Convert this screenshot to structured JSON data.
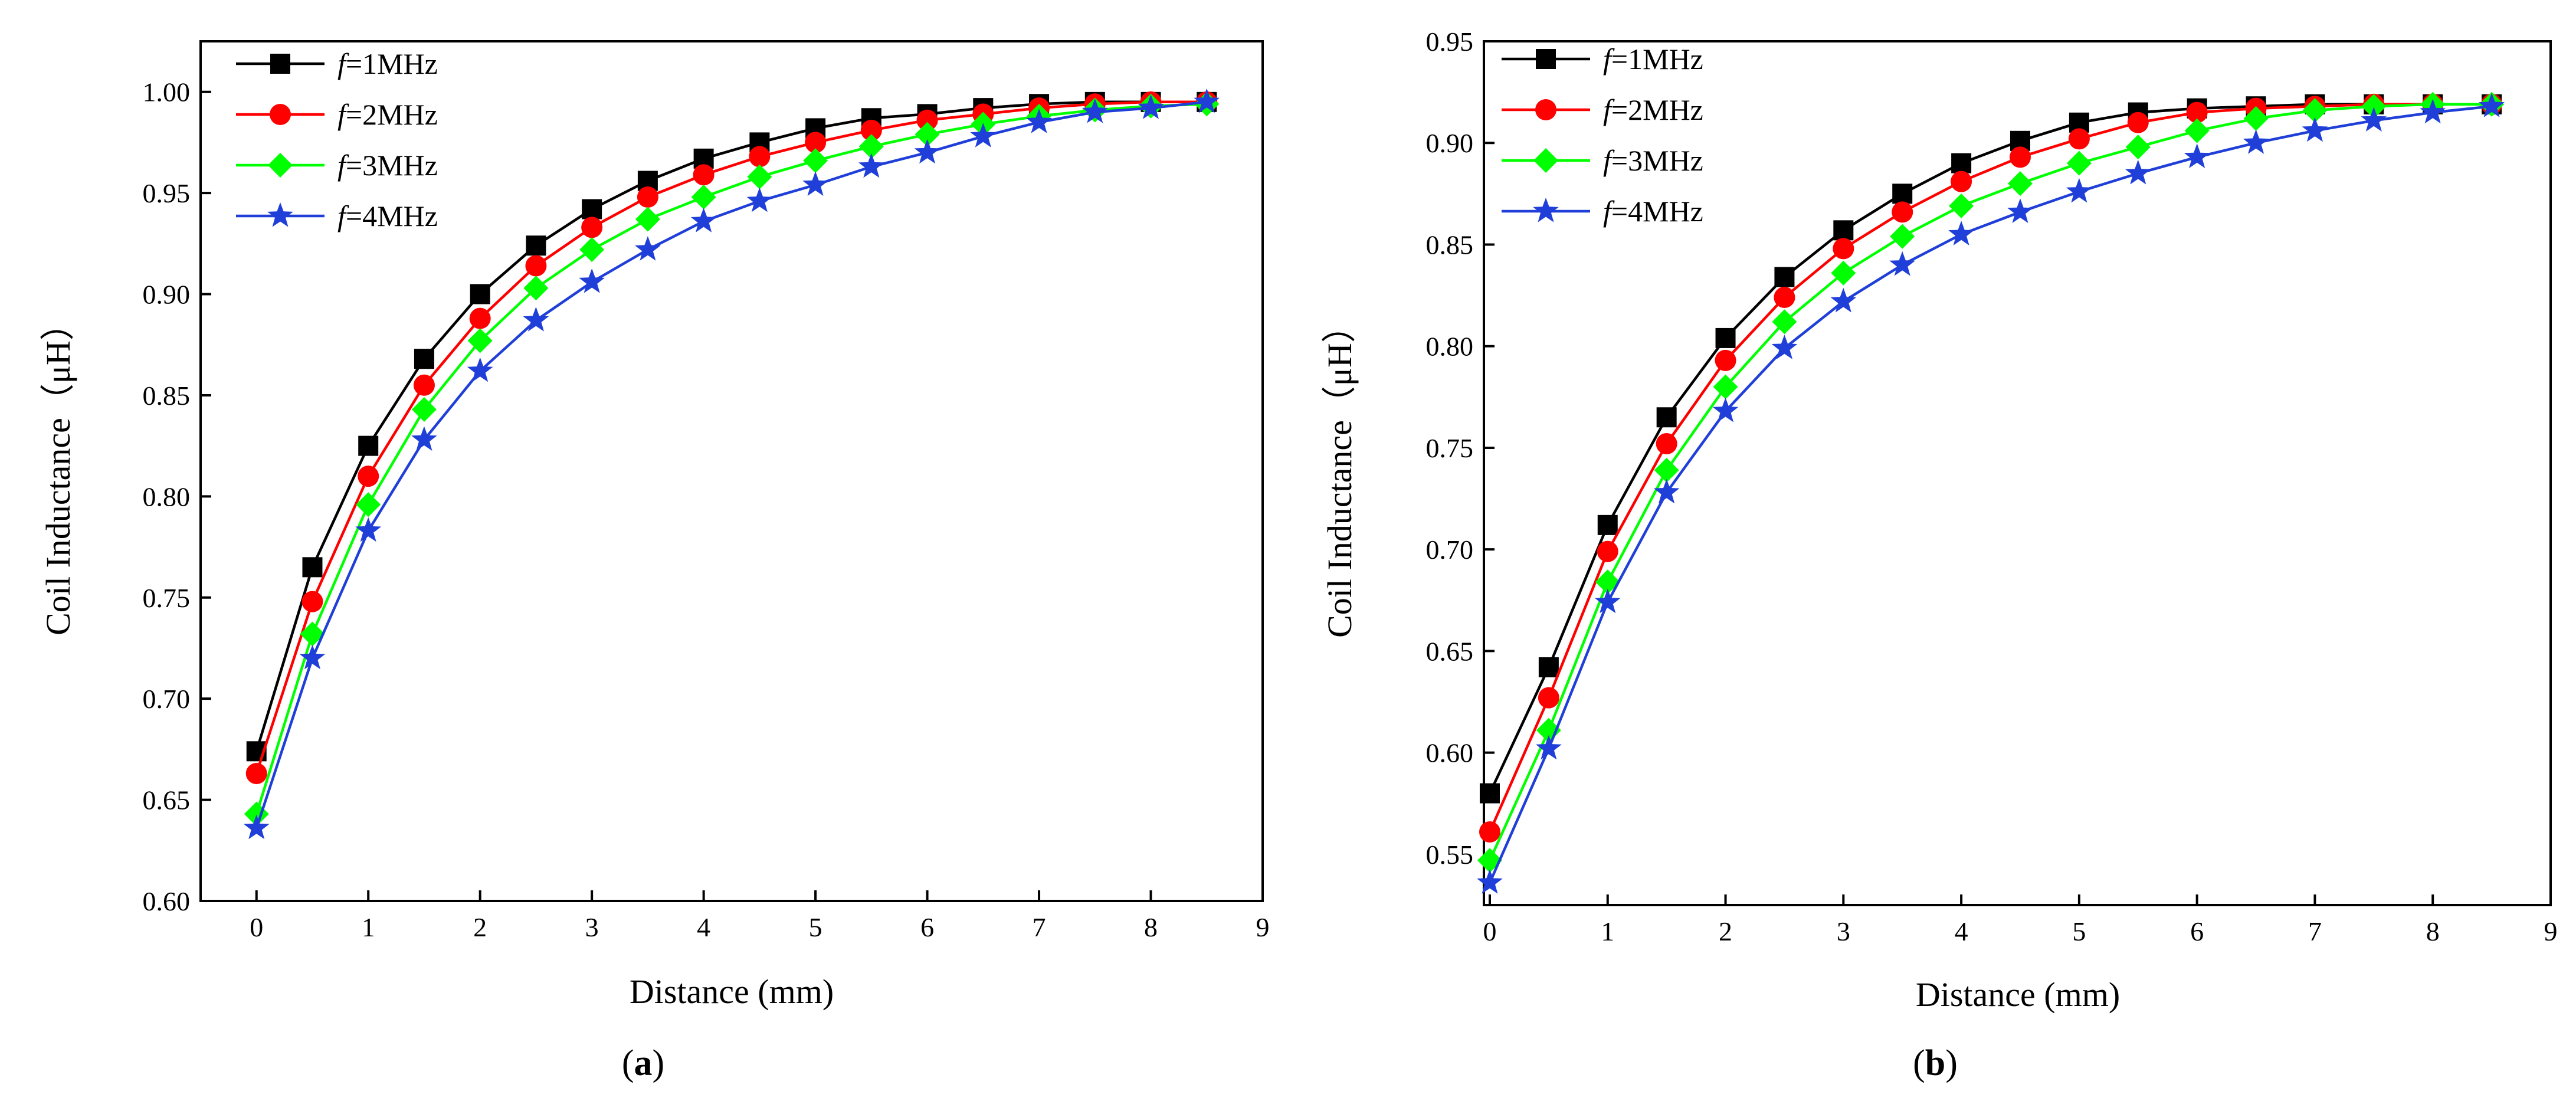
{
  "chart_data": [
    {
      "type": "line",
      "caption": {
        "open": "(",
        "letter": "a",
        "close": ")"
      },
      "xlabel": "Distance (mm)",
      "ylabel": "Coil Inductance（μH）",
      "xlim": [
        -0.5,
        9
      ],
      "ylim": [
        0.6,
        1.025
      ],
      "xticks": [
        0,
        1,
        2,
        3,
        4,
        5,
        6,
        7,
        8,
        9
      ],
      "yticks": [
        "0.60",
        "0.65",
        "0.70",
        "0.75",
        "0.80",
        "0.85",
        "0.90",
        "0.95",
        "1.00"
      ],
      "legend_position": "top-left",
      "x": [
        0,
        0.5,
        1,
        1.5,
        2,
        2.5,
        3,
        3.5,
        4,
        4.5,
        5,
        5.5,
        6,
        6.5,
        7,
        7.5,
        8,
        8.5
      ],
      "series": [
        {
          "name": "f=1MHz",
          "label_italic": "f",
          "label_rest": "=1MHz",
          "color": "#000000",
          "marker": "square",
          "values": [
            0.674,
            0.765,
            0.825,
            0.868,
            0.9,
            0.924,
            0.942,
            0.956,
            0.967,
            0.975,
            0.982,
            0.987,
            0.989,
            0.992,
            0.994,
            0.995,
            0.995,
            0.995
          ]
        },
        {
          "name": "f=2MHz",
          "label_italic": "f",
          "label_rest": "=2MHz",
          "color": "#ff0000",
          "marker": "circle",
          "values": [
            0.663,
            0.748,
            0.81,
            0.855,
            0.888,
            0.914,
            0.933,
            0.948,
            0.959,
            0.968,
            0.975,
            0.981,
            0.986,
            0.989,
            0.992,
            0.994,
            0.995,
            0.995
          ]
        },
        {
          "name": "f=3MHz",
          "label_italic": "f",
          "label_rest": "=3MHz",
          "color": "#00ff00",
          "marker": "diamond",
          "values": [
            0.643,
            0.732,
            0.796,
            0.843,
            0.877,
            0.903,
            0.922,
            0.937,
            0.948,
            0.958,
            0.966,
            0.973,
            0.979,
            0.984,
            0.988,
            0.991,
            0.993,
            0.994
          ]
        },
        {
          "name": "f=4MHz",
          "label_italic": "f",
          "label_rest": "=4MHz",
          "color": "#1f3fd8",
          "marker": "star",
          "values": [
            0.636,
            0.72,
            0.783,
            0.828,
            0.862,
            0.887,
            0.906,
            0.922,
            0.936,
            0.946,
            0.954,
            0.963,
            0.97,
            0.978,
            0.985,
            0.99,
            0.992,
            0.995
          ]
        }
      ]
    },
    {
      "type": "line",
      "caption": {
        "open": "(",
        "letter": "b",
        "close": ")"
      },
      "xlabel": "Distance (mm)",
      "ylabel": "Coil Inductance（μH）",
      "xlim": [
        -0.05,
        9
      ],
      "ylim": [
        0.525,
        0.95
      ],
      "xticks": [
        0,
        1,
        2,
        3,
        4,
        5,
        6,
        7,
        8,
        9
      ],
      "yticks": [
        "0.55",
        "0.60",
        "0.65",
        "0.70",
        "0.75",
        "0.80",
        "0.85",
        "0.90",
        "0.95"
      ],
      "legend_position": "top-left",
      "x": [
        0,
        0.5,
        1,
        1.5,
        2,
        2.5,
        3,
        3.5,
        4,
        4.5,
        5,
        5.5,
        6,
        6.5,
        7,
        7.5,
        8,
        8.5
      ],
      "series": [
        {
          "name": "f=1MHz",
          "label_italic": "f",
          "label_rest": "=1MHz",
          "color": "#000000",
          "marker": "square",
          "values": [
            0.58,
            0.642,
            0.712,
            0.765,
            0.804,
            0.834,
            0.857,
            0.875,
            0.89,
            0.901,
            0.91,
            0.915,
            0.917,
            0.918,
            0.919,
            0.919,
            0.919,
            0.919
          ]
        },
        {
          "name": "f=2MHz",
          "label_italic": "f",
          "label_rest": "=2MHz",
          "color": "#ff0000",
          "marker": "circle",
          "values": [
            0.561,
            0.627,
            0.699,
            0.752,
            0.793,
            0.824,
            0.848,
            0.866,
            0.881,
            0.893,
            0.902,
            0.91,
            0.915,
            0.917,
            0.918,
            0.919,
            0.919,
            0.919
          ]
        },
        {
          "name": "f=3MHz",
          "label_italic": "f",
          "label_rest": "=3MHz",
          "color": "#00ff00",
          "marker": "diamond",
          "values": [
            0.547,
            0.611,
            0.684,
            0.739,
            0.78,
            0.812,
            0.836,
            0.854,
            0.869,
            0.88,
            0.89,
            0.898,
            0.906,
            0.912,
            0.916,
            0.918,
            0.919,
            0.919
          ]
        },
        {
          "name": "f=4MHz",
          "label_italic": "f",
          "label_rest": "=4MHz",
          "color": "#1f3fd8",
          "marker": "star",
          "values": [
            0.536,
            0.602,
            0.674,
            0.728,
            0.768,
            0.799,
            0.822,
            0.84,
            0.855,
            0.866,
            0.876,
            0.885,
            0.893,
            0.9,
            0.906,
            0.911,
            0.915,
            0.918
          ]
        }
      ]
    }
  ]
}
